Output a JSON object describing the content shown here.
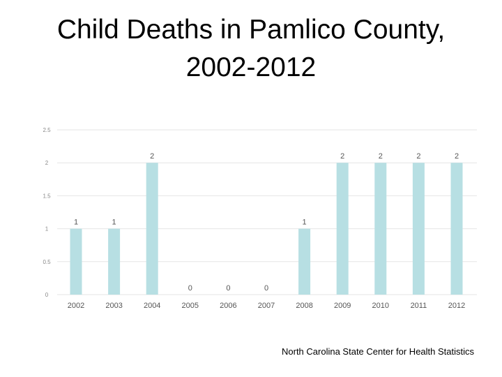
{
  "title_lines": [
    "Child Deaths in Pamlico County,",
    "2002-2012"
  ],
  "source": "North Carolina State Center for Health Statistics",
  "colors": {
    "bar": "#b7dfe3",
    "grid": "#e6e6e6",
    "tick": "#888888",
    "label": "#555555"
  },
  "chart_data": {
    "type": "bar",
    "title": "Child Deaths in Pamlico County, 2002-2012",
    "categories": [
      "2002",
      "2003",
      "2004",
      "2005",
      "2006",
      "2007",
      "2008",
      "2009",
      "2010",
      "2011",
      "2012"
    ],
    "values": [
      1,
      1,
      2,
      0,
      0,
      0,
      1,
      2,
      2,
      2,
      2
    ],
    "data_labels": [
      "1",
      "1",
      "2",
      "0",
      "0",
      "0",
      "1",
      "2",
      "2",
      "2",
      "2"
    ],
    "yticks": [
      0,
      0.5,
      1,
      1.5,
      2,
      2.5
    ],
    "ytick_labels": [
      "0",
      "0.5",
      "1",
      "1.5",
      "2",
      "2.5"
    ],
    "ylim": [
      0,
      2.5
    ],
    "grid": true,
    "legend": "none",
    "xlabel": "",
    "ylabel": ""
  }
}
